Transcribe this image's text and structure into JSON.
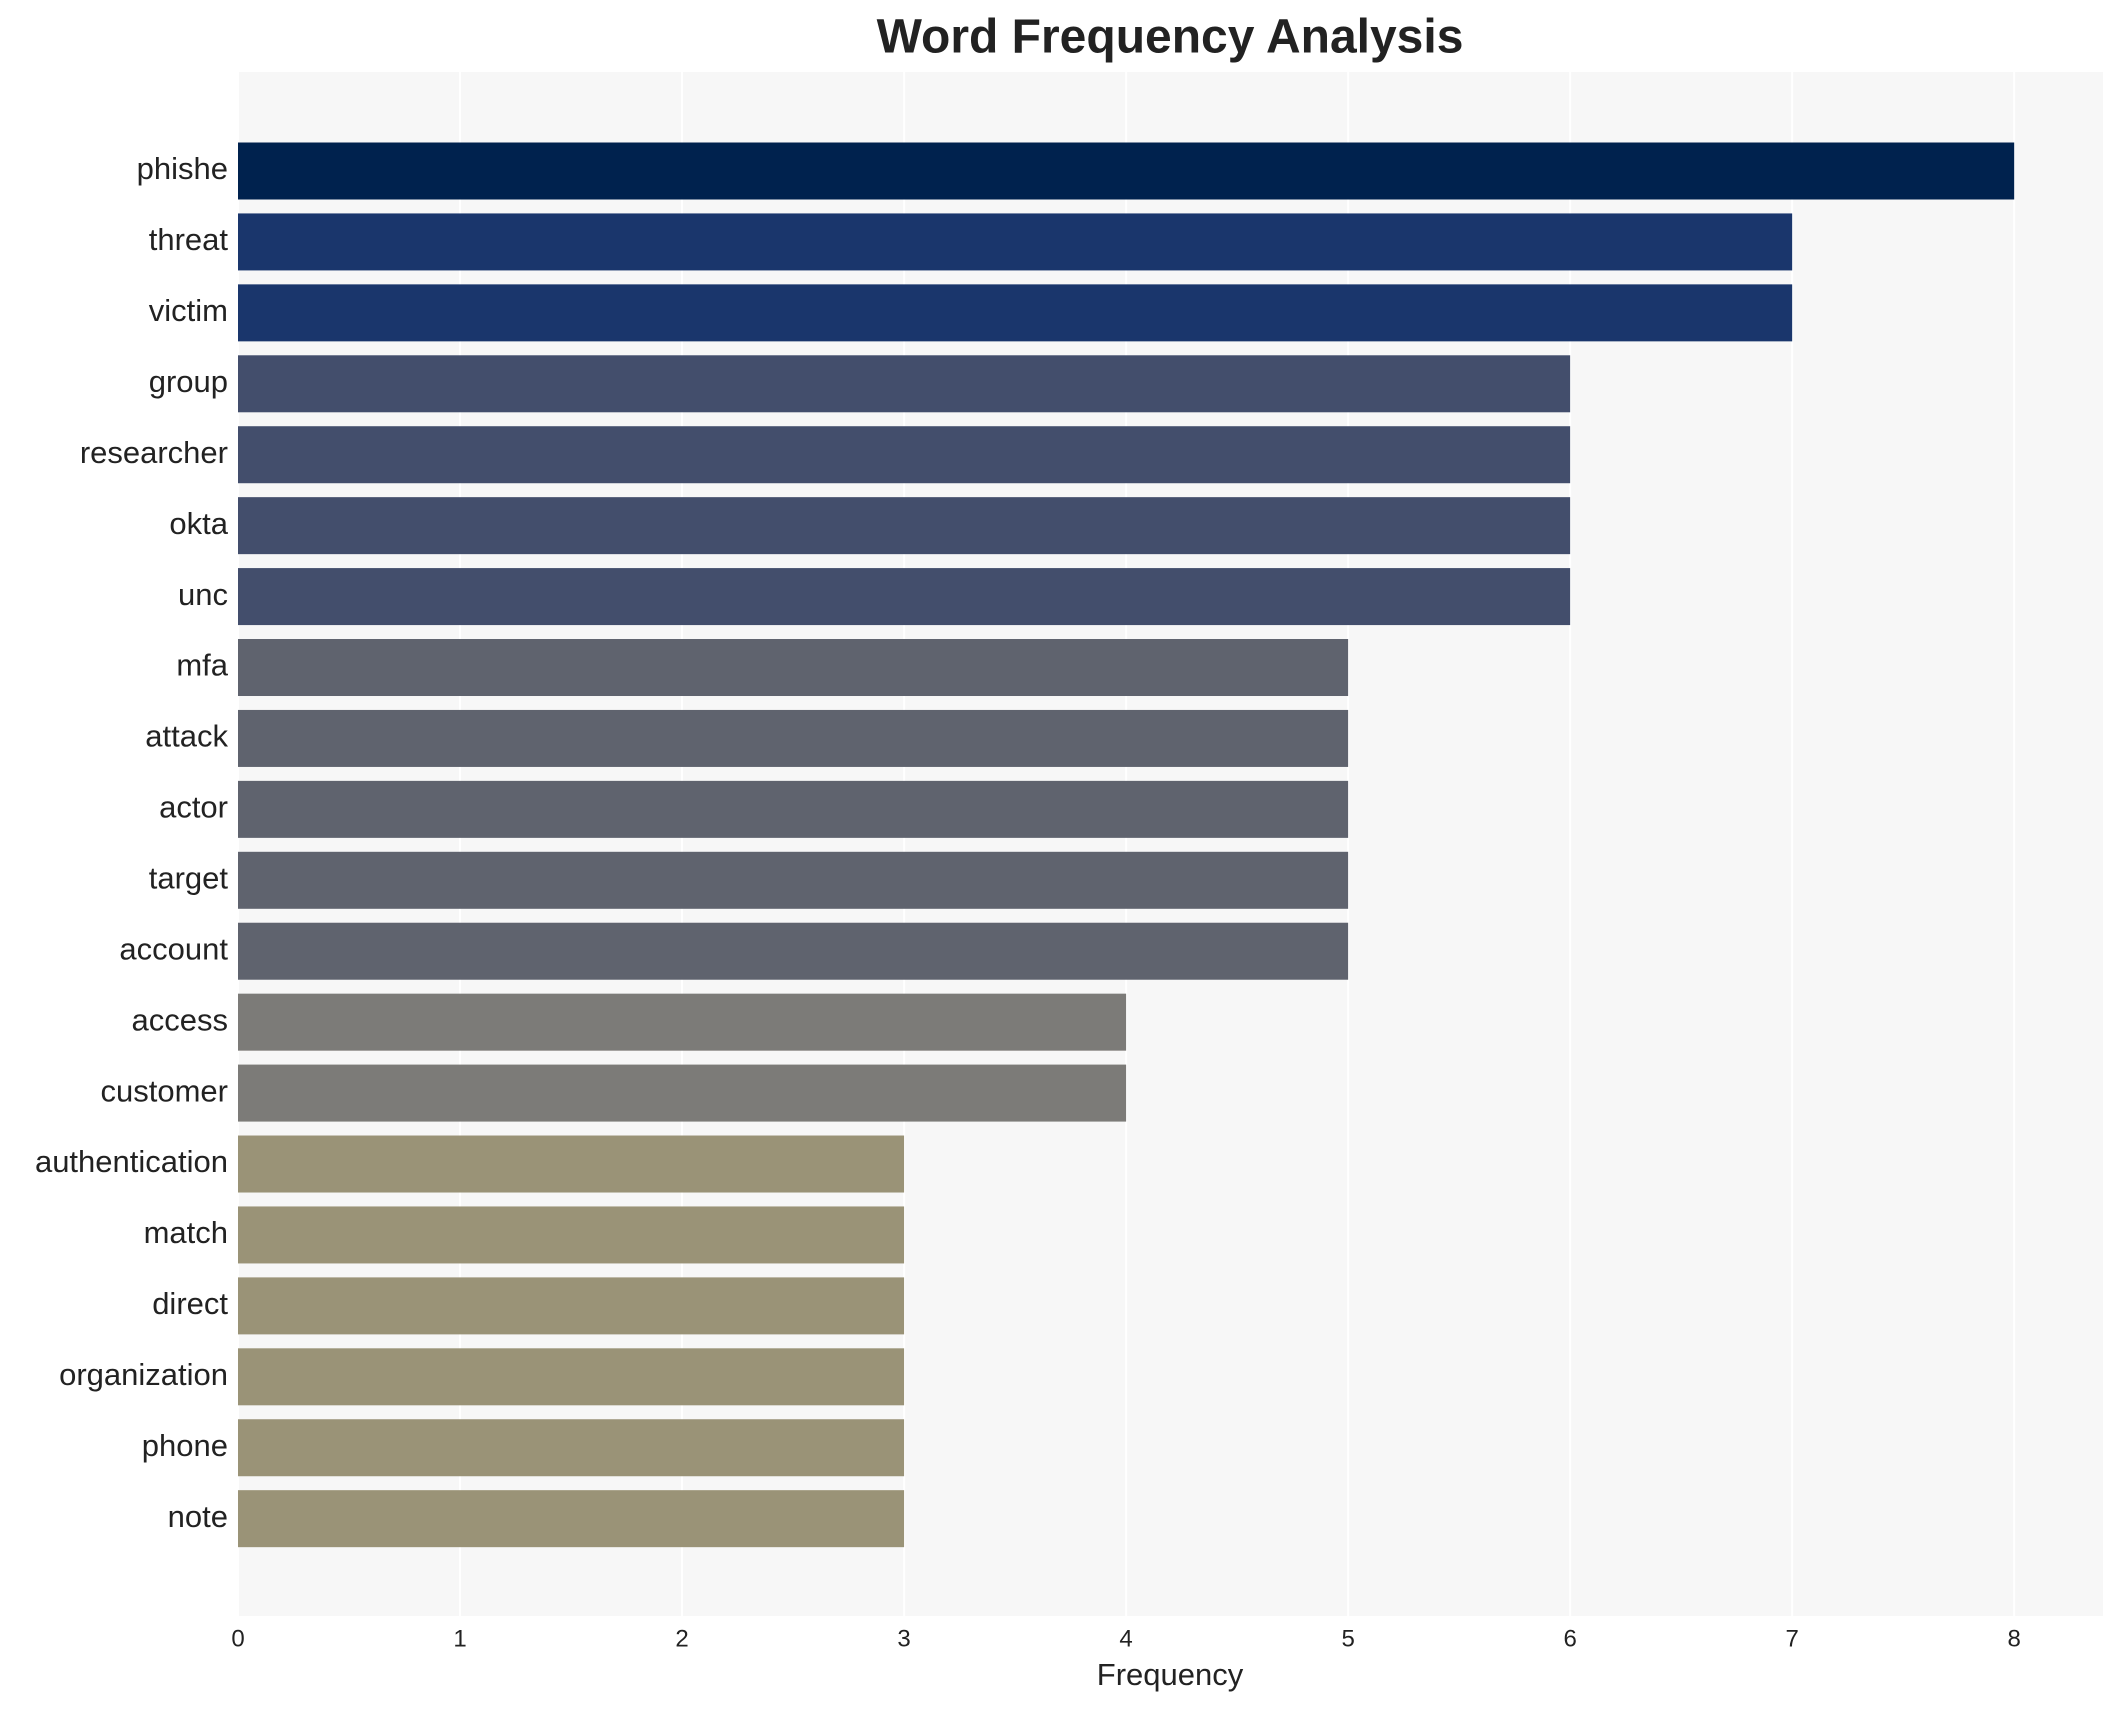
{
  "chart_data": {
    "type": "barh",
    "title": "Word Frequency Analysis",
    "xlabel": "Frequency",
    "categories": [
      "phishe",
      "threat",
      "victim",
      "group",
      "researcher",
      "okta",
      "unc",
      "mfa",
      "attack",
      "actor",
      "target",
      "account",
      "access",
      "customer",
      "authentication",
      "match",
      "direct",
      "organization",
      "phone",
      "note"
    ],
    "values": [
      8,
      7,
      7,
      6,
      6,
      6,
      6,
      5,
      5,
      5,
      5,
      5,
      4,
      4,
      3,
      3,
      3,
      3,
      3,
      3
    ],
    "colors": [
      "#00224e",
      "#1a366c",
      "#1a366c",
      "#434e6c",
      "#434e6c",
      "#434e6c",
      "#434e6c",
      "#5f636e",
      "#5f636e",
      "#5f636e",
      "#5f636e",
      "#5f636e",
      "#7c7b78",
      "#7c7b78",
      "#9a9377",
      "#9a9377",
      "#9a9377",
      "#9a9377",
      "#9a9377",
      "#9a9377"
    ],
    "xlim": [
      0,
      8.4
    ],
    "xticks": [
      0,
      1,
      2,
      3,
      4,
      5,
      6,
      7,
      8
    ],
    "grid": true
  }
}
